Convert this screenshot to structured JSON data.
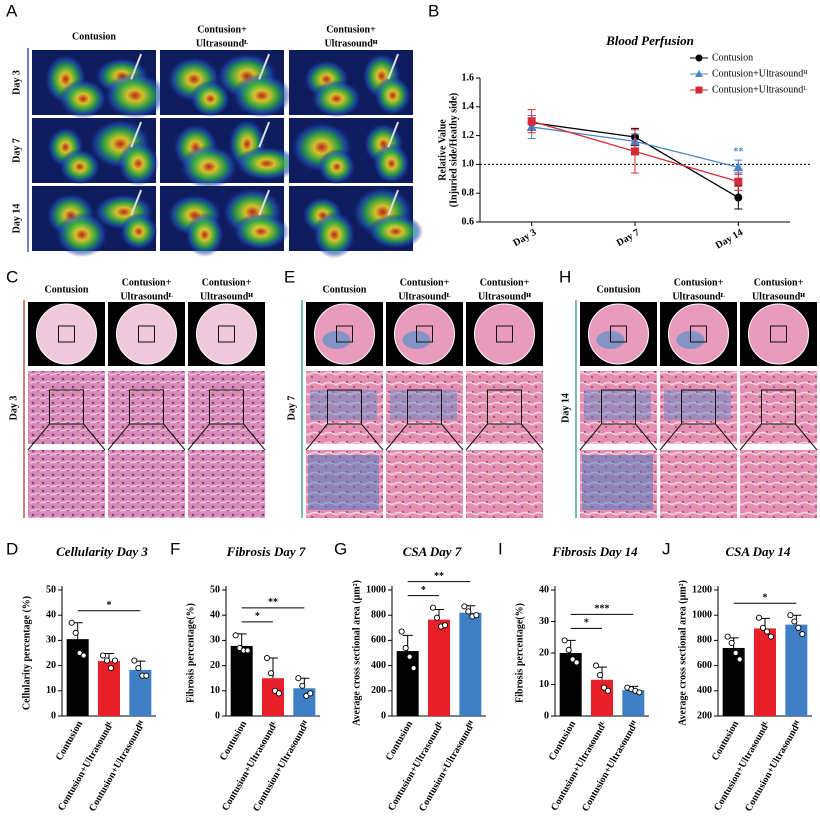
{
  "panel_labels": [
    "A",
    "B",
    "C",
    "D",
    "E",
    "F",
    "G",
    "H",
    "I",
    "J"
  ],
  "laser_panel": {
    "columns": [
      [
        "Contusion"
      ],
      [
        "Contusion+",
        "Ultrasoundᴸ"
      ],
      [
        "Contusion+",
        "Ultrasoundᴴ"
      ]
    ],
    "rows": [
      "Day 3",
      "Day 7",
      "Day 14"
    ]
  },
  "histology_panels": [
    {
      "day": "Day 3",
      "columns": [
        [
          "Contusion"
        ],
        [
          "Contusion+",
          "Ultrasoundᴸ"
        ],
        [
          "Contusion+",
          "Ultrasoundᴴ"
        ]
      ],
      "line_color": "#c0504d"
    },
    {
      "day": "Day 7",
      "columns": [
        [
          "Contusion"
        ],
        [
          "Contusion+",
          "Ultrasoundᴸ"
        ],
        [
          "Contusion+",
          "Ultrasoundᴴ"
        ]
      ],
      "line_color": "#4aa3a0"
    },
    {
      "day": "Day 14",
      "columns": [
        [
          "Contusion"
        ],
        [
          "Contusion+",
          "Ultrasoundᴸ"
        ],
        [
          "Contusion+",
          "Ultrasoundᴴ"
        ]
      ],
      "line_color": "#4aa3a0"
    }
  ],
  "chart_data": [
    {
      "type": "line",
      "title": "Blood Perfusion",
      "y_label": [
        "Relative Value",
        "(Injuried side/Heathy side)"
      ],
      "categories": [
        "Day 3",
        "Day 7",
        "Day 14"
      ],
      "series": [
        {
          "name": "Contusion",
          "color": "#000000",
          "marker": "circle",
          "values": [
            1.29,
            1.19,
            0.77
          ],
          "errors": [
            0.05,
            0.06,
            0.08
          ],
          "annotations": [
            null,
            null,
            null
          ]
        },
        {
          "name": "Contusion+Ultrasoundᴴ",
          "color": "#4a86c8",
          "marker": "triangle",
          "values": [
            1.26,
            1.16,
            0.98
          ],
          "errors": [
            0.08,
            0.05,
            0.05
          ],
          "annotations": [
            null,
            null,
            "**"
          ]
        },
        {
          "name": "Contusion+Ultrasoundᴸ",
          "color": "#d62a36",
          "marker": "square",
          "values": [
            1.3,
            1.09,
            0.88
          ],
          "errors": [
            0.08,
            0.15,
            0.06
          ],
          "annotations": [
            null,
            null,
            null
          ]
        }
      ],
      "ylim": [
        0.6,
        1.6
      ],
      "yticks": [
        0.6,
        0.8,
        {
          "value": 1,
          "label": "1.0"
        },
        1.2,
        1.4,
        1.6
      ],
      "reference_line": 1,
      "legend": "upper right"
    },
    {
      "type": "bar",
      "title": "Cellularity Day 3",
      "y_label": "Cellularity percentage (%)",
      "categories": [
        "Contusion",
        "Contusion+Ultrasoundᴸ",
        "Contusion+Ultrasoundᴴ"
      ],
      "colors": [
        "#000000",
        "#e8202a",
        "#3f7fc6"
      ],
      "values": [
        30.5,
        21.8,
        18.3
      ],
      "errors": [
        6.5,
        3,
        3.5
      ],
      "points": [
        [
          37,
          33,
          25,
          24
        ],
        [
          24,
          22,
          19,
          22
        ],
        [
          22,
          19,
          16,
          16
        ]
      ],
      "ylim": [
        0,
        50
      ],
      "yticks": [
        0,
        10,
        20,
        30,
        40,
        50
      ],
      "significance": [
        {
          "from": 0,
          "to": 2,
          "text": "*"
        }
      ]
    },
    {
      "type": "bar",
      "title": "Fibrosis Day 7",
      "y_label": "Fibrosis percentage(%)",
      "categories": [
        "Contusion",
        "Contusion+Ultrasoundᴸ",
        "Contusion+Ultrasoundᴴ"
      ],
      "colors": [
        "#000000",
        "#e8202a",
        "#3f7fc6"
      ],
      "values": [
        27.8,
        15,
        11
      ],
      "errors": [
        4.8,
        8,
        4
      ],
      "points": [
        [
          32,
          27,
          26,
          26
        ],
        [
          23,
          17,
          10,
          9
        ],
        [
          15,
          12,
          8,
          9
        ]
      ],
      "ylim": [
        0,
        50
      ],
      "yticks": [
        0,
        10,
        20,
        30,
        40,
        50
      ],
      "significance": [
        {
          "from": 0,
          "to": 1,
          "text": "*"
        },
        {
          "from": 0,
          "to": 2,
          "text": "**"
        }
      ]
    },
    {
      "type": "bar",
      "title": "CSA Day 7",
      "y_label": "Average cross sectional area (μm²)",
      "categories": [
        "Contusion",
        "Contusion+Ultrasoundᴸ",
        "Contusion+Ultrasoundᴴ"
      ],
      "colors": [
        "#000000",
        "#e8202a",
        "#3f7fc6"
      ],
      "values": [
        515,
        765,
        820
      ],
      "errors": [
        125,
        80,
        55
      ],
      "points": [
        [
          670,
          540,
          470,
          380
        ],
        [
          860,
          780,
          710,
          720
        ],
        [
          870,
          830,
          790,
          800
        ]
      ],
      "ylim": [
        0,
        1000
      ],
      "yticks": [
        0,
        200,
        400,
        600,
        800,
        1000
      ],
      "significance": [
        {
          "from": 0,
          "to": 1,
          "text": "*"
        },
        {
          "from": 0,
          "to": 2,
          "text": "**"
        }
      ]
    },
    {
      "type": "bar",
      "title": "Fibrosis Day 14",
      "y_label": "Fibrosis percentage(%)",
      "categories": [
        "Contusion",
        "Contusion+Ultrasoundᴸ",
        "Contusion+Ultrasoundᴴ"
      ],
      "colors": [
        "#000000",
        "#e8202a",
        "#3f7fc6"
      ],
      "values": [
        20,
        11.5,
        8.2
      ],
      "errors": [
        4,
        4,
        1.2
      ],
      "points": [
        [
          24,
          21,
          18,
          17
        ],
        [
          16,
          13,
          9,
          8
        ],
        [
          9,
          8.5,
          8,
          7.5
        ]
      ],
      "ylim": [
        0,
        40
      ],
      "yticks": [
        0,
        10,
        20,
        30,
        40
      ],
      "significance": [
        {
          "from": 0,
          "to": 1,
          "text": "*"
        },
        {
          "from": 0,
          "to": 2,
          "text": "***"
        }
      ]
    },
    {
      "type": "bar",
      "title": "CSA Day 14",
      "y_label": "Average cross sectional area (μm²)",
      "categories": [
        "Contusion",
        "Contusion+Ultrasoundᴸ",
        "Contusion+Ultrasoundᴴ"
      ],
      "colors": [
        "#000000",
        "#e8202a",
        "#3f7fc6"
      ],
      "values": [
        740,
        895,
        925
      ],
      "errors": [
        80,
        80,
        75
      ],
      "points": [
        [
          830,
          780,
          700,
          650
        ],
        [
          980,
          900,
          870,
          830
        ],
        [
          1000,
          950,
          900,
          850
        ]
      ],
      "ylim": [
        200,
        1200
      ],
      "yticks": [
        200,
        400,
        600,
        800,
        1000,
        1200
      ],
      "significance": [
        {
          "from": 0,
          "to": 2,
          "text": "*"
        }
      ]
    }
  ]
}
